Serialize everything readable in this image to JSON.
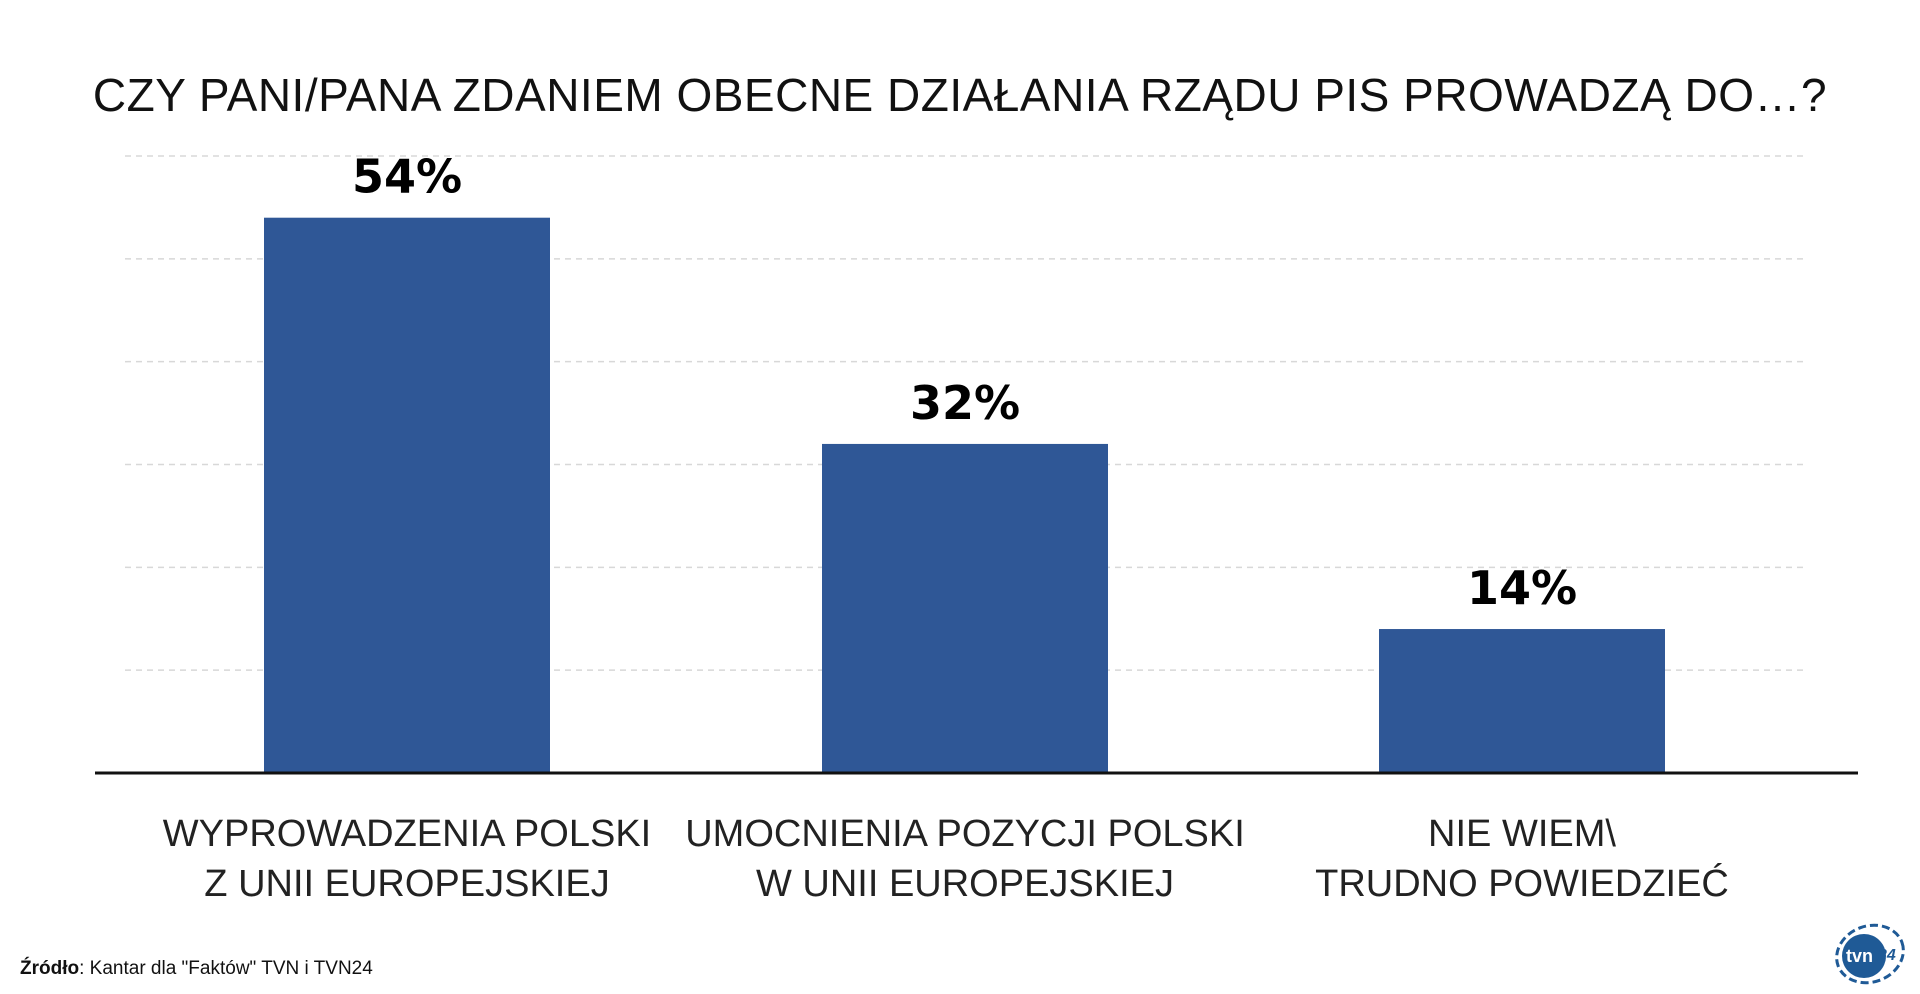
{
  "chart_data": {
    "type": "bar",
    "title": "CZY PANI/PANA ZDANIEM OBECNE DZIAŁANIA RZĄDU PIS PROWADZĄ DO…?",
    "categories": [
      [
        "WYPROWADZENIA POLSKI",
        "Z UNII EUROPEJSKIEJ"
      ],
      [
        "UMOCNIENIA POZYCJI POLSKI",
        "W UNII EUROPEJSKIEJ"
      ],
      [
        "NIE WIEM\\",
        "TRUDNO POWIEDZIEĆ"
      ]
    ],
    "values": [
      54,
      32,
      14
    ],
    "value_labels": [
      "54%",
      "32%",
      "14%"
    ],
    "ylim": [
      0,
      60
    ],
    "grid_step": 10,
    "grid": true,
    "bar_color": "#2f5796",
    "xlabel": "",
    "ylabel": ""
  },
  "source": {
    "label": "Źródło",
    "text": ": Kantar dla \"Faktów\" TVN i TVN24"
  },
  "logo": {
    "text": "tvn24",
    "color": "#1f5a96"
  }
}
